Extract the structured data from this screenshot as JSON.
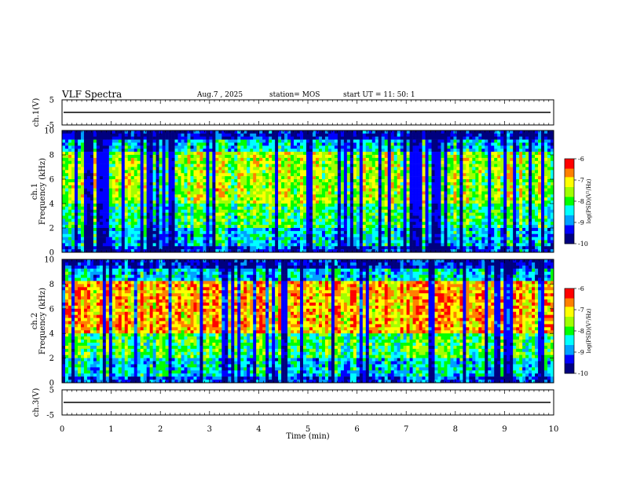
{
  "header": {
    "title": "VLF Spectra",
    "date": "Aug.7  , 2025",
    "station": "station= MOS",
    "start_ut": "start  UT =    11: 50: 1"
  },
  "chart_data": [
    {
      "type": "line",
      "name": "ch1-waveform",
      "ylabel": "ch.1(V)",
      "yticks": [
        "5",
        "-5"
      ],
      "ylim": [
        -5,
        5
      ],
      "xlim": [
        0,
        10
      ],
      "baseline_level": 0
    },
    {
      "type": "heatmap",
      "name": "ch1-spectrogram",
      "ylabel": "ch.1\nFrequency (kHz)",
      "ylabel_lines": [
        "ch.1",
        "Frequency (kHz)"
      ],
      "yticks": [
        "0",
        "2",
        "4",
        "6",
        "8",
        "10"
      ],
      "ylim_khz": [
        0,
        10
      ],
      "xlim_min": [
        0,
        10
      ],
      "colorbar": {
        "label": "log(PSD)(V²/Hz)",
        "ticks": [
          "-6",
          "-7",
          "-8",
          "-9",
          "-10"
        ],
        "range": [
          -10,
          -6
        ]
      }
    },
    {
      "type": "heatmap",
      "name": "ch2-spectrogram",
      "ylabel": "ch.2\nFrequency (kHz)",
      "ylabel_lines": [
        "ch.2",
        "Frequency (kHz)"
      ],
      "yticks": [
        "0",
        "2",
        "4",
        "6",
        "8",
        "10"
      ],
      "ylim_khz": [
        0,
        10
      ],
      "xlim_min": [
        0,
        10
      ],
      "colorbar": {
        "label": "log(PSD)(V²/Hz)",
        "ticks": [
          "-6",
          "-7",
          "-8",
          "-9",
          "-10"
        ],
        "range": [
          -10,
          -6
        ]
      }
    },
    {
      "type": "line",
      "name": "ch3-waveform",
      "ylabel": "ch.3(V)",
      "yticks": [
        "5",
        "-5"
      ],
      "ylim": [
        -5,
        5
      ],
      "xlim": [
        0,
        10
      ],
      "baseline_level": 0
    }
  ],
  "xaxis": {
    "label": "Time  (min)",
    "ticks": [
      "0",
      "1",
      "2",
      "3",
      "4",
      "5",
      "6",
      "7",
      "8",
      "9",
      "10"
    ],
    "range": [
      0,
      10
    ]
  },
  "colors": {
    "colormap": [
      "#00007f",
      "#0000ff",
      "#00a0ff",
      "#00ffff",
      "#00ff00",
      "#a0ff00",
      "#ffff00",
      "#ff8000",
      "#ff0000",
      "#ffffff"
    ]
  }
}
